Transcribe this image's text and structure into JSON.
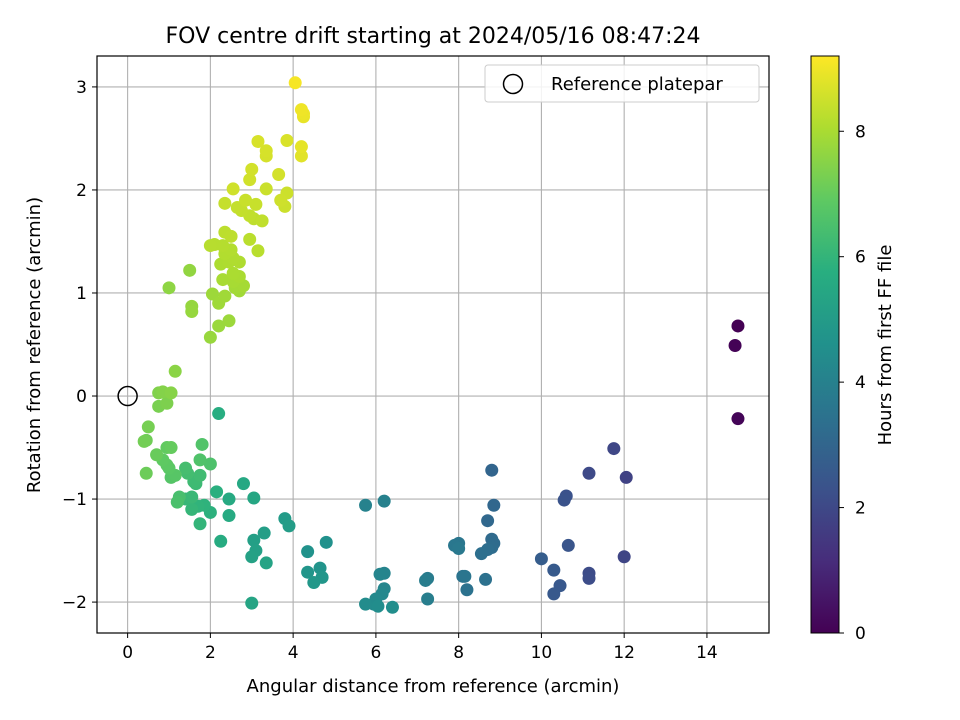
{
  "chart_data": {
    "type": "scatter",
    "title": "FOV centre drift starting at 2024/05/16 08:47:24",
    "xlabel": "Angular distance from reference (arcmin)",
    "ylabel": "Rotation from reference (arcmin)",
    "xlim": [
      -0.74,
      15.5
    ],
    "ylim": [
      -2.3,
      3.3
    ],
    "xticks": [
      0,
      2,
      4,
      6,
      8,
      10,
      12,
      14
    ],
    "yticks": [
      -2,
      -1,
      0,
      1,
      2,
      3
    ],
    "grid": true,
    "legend": {
      "placement": "top-right",
      "entries": [
        "Reference platepar"
      ]
    },
    "reference_point": {
      "x": 0,
      "y": 0
    },
    "colorbar": {
      "label": "Hours from first FF file",
      "colormap": "viridis",
      "range": [
        0,
        9.2
      ],
      "ticks": [
        0,
        2,
        4,
        6,
        8
      ]
    },
    "points": [
      [
        14.75,
        0.68,
        0.0
      ],
      [
        14.68,
        0.49,
        0.05
      ],
      [
        14.75,
        -0.22,
        0.1
      ],
      [
        12.05,
        -0.79,
        1.8
      ],
      [
        11.75,
        -0.51,
        1.95
      ],
      [
        11.15,
        -0.75,
        2.05
      ],
      [
        11.15,
        -1.72,
        2.1
      ],
      [
        11.15,
        -1.77,
        2.15
      ],
      [
        12.0,
        -1.56,
        1.9
      ],
      [
        10.6,
        -0.97,
        2.3
      ],
      [
        10.55,
        -1.01,
        2.35
      ],
      [
        10.65,
        -1.45,
        2.4
      ],
      [
        10.45,
        -1.84,
        2.5
      ],
      [
        10.3,
        -1.92,
        2.55
      ],
      [
        10.3,
        -1.69,
        2.6
      ],
      [
        10.0,
        -1.58,
        2.7
      ],
      [
        8.8,
        -0.72,
        3.0
      ],
      [
        8.85,
        -1.06,
        3.05
      ],
      [
        8.7,
        -1.21,
        3.1
      ],
      [
        8.8,
        -1.39,
        3.15
      ],
      [
        8.85,
        -1.43,
        3.2
      ],
      [
        8.8,
        -1.47,
        3.25
      ],
      [
        8.7,
        -1.49,
        3.3
      ],
      [
        8.55,
        -1.53,
        3.35
      ],
      [
        8.65,
        -1.78,
        3.4
      ],
      [
        8.2,
        -1.88,
        3.45
      ],
      [
        8.1,
        -1.75,
        3.5
      ],
      [
        8.15,
        -1.75,
        3.55
      ],
      [
        8.0,
        -1.43,
        3.6
      ],
      [
        7.9,
        -1.45,
        3.65
      ],
      [
        8.0,
        -1.48,
        3.7
      ],
      [
        7.25,
        -1.77,
        3.8
      ],
      [
        7.2,
        -1.79,
        3.85
      ],
      [
        7.25,
        -1.97,
        3.9
      ],
      [
        6.2,
        -1.02,
        4.0
      ],
      [
        5.75,
        -1.06,
        4.05
      ],
      [
        6.2,
        -1.72,
        4.1
      ],
      [
        6.1,
        -1.73,
        4.15
      ],
      [
        6.2,
        -1.87,
        4.2
      ],
      [
        6.15,
        -1.92,
        4.25
      ],
      [
        6.0,
        -1.97,
        4.3
      ],
      [
        5.95,
        -2.02,
        4.35
      ],
      [
        5.75,
        -2.02,
        4.4
      ],
      [
        6.05,
        -2.04,
        4.45
      ],
      [
        6.4,
        -2.05,
        4.5
      ],
      [
        4.8,
        -1.42,
        4.6
      ],
      [
        4.35,
        -1.51,
        4.65
      ],
      [
        4.65,
        -1.67,
        4.7
      ],
      [
        4.35,
        -1.71,
        4.75
      ],
      [
        4.7,
        -1.76,
        4.8
      ],
      [
        4.5,
        -1.81,
        4.85
      ],
      [
        3.8,
        -1.19,
        5.0
      ],
      [
        3.9,
        -1.26,
        5.05
      ],
      [
        3.3,
        -1.33,
        5.1
      ],
      [
        3.05,
        -1.4,
        5.15
      ],
      [
        3.1,
        -1.5,
        5.2
      ],
      [
        3.0,
        -1.56,
        5.25
      ],
      [
        3.35,
        -1.62,
        5.3
      ],
      [
        3.0,
        -2.01,
        5.35
      ],
      [
        3.05,
        -0.99,
        5.45
      ],
      [
        2.8,
        -0.85,
        5.5
      ],
      [
        2.45,
        -1.0,
        5.55
      ],
      [
        2.45,
        -1.16,
        5.6
      ],
      [
        2.25,
        -1.41,
        5.65
      ],
      [
        2.2,
        -0.17,
        5.7
      ],
      [
        2.15,
        -0.93,
        5.8
      ],
      [
        2.0,
        -1.13,
        5.85
      ],
      [
        1.85,
        -1.06,
        5.9
      ],
      [
        1.7,
        -1.07,
        5.95
      ],
      [
        1.75,
        -1.24,
        6.0
      ],
      [
        1.55,
        -1.1,
        6.05
      ],
      [
        1.4,
        -1.0,
        6.1
      ],
      [
        1.55,
        -0.98,
        6.15
      ],
      [
        1.65,
        -0.85,
        6.2
      ],
      [
        1.6,
        -0.83,
        6.25
      ],
      [
        1.75,
        -0.77,
        6.3
      ],
      [
        1.45,
        -0.75,
        6.35
      ],
      [
        1.4,
        -0.7,
        6.4
      ],
      [
        1.25,
        -0.98,
        6.45
      ],
      [
        1.2,
        -1.03,
        6.5
      ],
      [
        2.0,
        -0.66,
        6.55
      ],
      [
        1.75,
        -0.62,
        6.6
      ],
      [
        1.8,
        -0.47,
        6.65
      ],
      [
        1.05,
        -0.79,
        6.7
      ],
      [
        1.15,
        -0.77,
        6.75
      ],
      [
        1.0,
        -0.7,
        6.8
      ],
      [
        0.95,
        -0.67,
        6.85
      ],
      [
        0.85,
        -0.62,
        6.9
      ],
      [
        0.95,
        -0.5,
        6.95
      ],
      [
        1.05,
        -0.5,
        7.0
      ],
      [
        0.7,
        -0.57,
        7.05
      ],
      [
        0.45,
        -0.75,
        7.1
      ],
      [
        0.45,
        -0.43,
        7.15
      ],
      [
        0.4,
        -0.44,
        7.2
      ],
      [
        0.5,
        -0.3,
        7.25
      ],
      [
        0.75,
        -0.1,
        7.3
      ],
      [
        0.95,
        -0.07,
        7.35
      ],
      [
        0.75,
        0.03,
        7.4
      ],
      [
        0.85,
        0.04,
        7.45
      ],
      [
        1.05,
        0.03,
        7.5
      ],
      [
        1.15,
        0.24,
        7.55
      ],
      [
        1.0,
        1.05,
        7.6
      ],
      [
        1.5,
        1.22,
        7.65
      ],
      [
        1.55,
        0.87,
        7.7
      ],
      [
        1.55,
        0.82,
        7.72
      ],
      [
        2.0,
        0.57,
        7.75
      ],
      [
        2.2,
        0.68,
        7.78
      ],
      [
        2.45,
        0.73,
        7.8
      ],
      [
        2.05,
        0.99,
        7.82
      ],
      [
        2.2,
        0.9,
        7.84
      ],
      [
        2.35,
        0.97,
        7.86
      ],
      [
        2.7,
        1.02,
        7.88
      ],
      [
        2.6,
        1.05,
        7.9
      ],
      [
        2.65,
        1.07,
        7.92
      ],
      [
        2.8,
        1.07,
        7.94
      ],
      [
        2.55,
        1.11,
        7.96
      ],
      [
        2.3,
        1.13,
        7.98
      ],
      [
        2.7,
        1.16,
        8.0
      ],
      [
        2.55,
        1.19,
        8.02
      ],
      [
        2.25,
        1.28,
        8.04
      ],
      [
        2.45,
        1.3,
        8.06
      ],
      [
        2.7,
        1.3,
        8.08
      ],
      [
        2.55,
        1.34,
        8.1
      ],
      [
        2.35,
        1.38,
        8.12
      ],
      [
        2.5,
        1.42,
        8.14
      ],
      [
        2.3,
        1.46,
        8.16
      ],
      [
        2.1,
        1.47,
        8.18
      ],
      [
        2.0,
        1.46,
        8.2
      ],
      [
        3.15,
        1.41,
        8.22
      ],
      [
        2.95,
        1.52,
        8.24
      ],
      [
        2.35,
        1.59,
        8.26
      ],
      [
        2.5,
        1.55,
        8.28
      ],
      [
        3.05,
        1.72,
        8.3
      ],
      [
        3.25,
        1.7,
        8.32
      ],
      [
        2.95,
        1.75,
        8.34
      ],
      [
        2.75,
        1.8,
        8.36
      ],
      [
        2.65,
        1.83,
        8.38
      ],
      [
        2.35,
        1.87,
        8.4
      ],
      [
        3.1,
        1.86,
        8.42
      ],
      [
        2.85,
        1.9,
        8.44
      ],
      [
        3.35,
        2.01,
        8.46
      ],
      [
        3.8,
        1.84,
        8.48
      ],
      [
        3.85,
        1.97,
        8.5
      ],
      [
        3.7,
        1.9,
        8.52
      ],
      [
        2.55,
        2.01,
        8.54
      ],
      [
        2.95,
        2.1,
        8.56
      ],
      [
        3.0,
        2.2,
        8.58
      ],
      [
        3.65,
        2.15,
        8.6
      ],
      [
        3.35,
        2.33,
        8.62
      ],
      [
        3.35,
        2.38,
        8.64
      ],
      [
        3.15,
        2.47,
        8.66
      ],
      [
        3.85,
        2.48,
        8.68
      ],
      [
        4.2,
        2.33,
        8.8
      ],
      [
        4.2,
        2.42,
        8.85
      ],
      [
        4.25,
        2.71,
        8.9
      ],
      [
        4.25,
        2.74,
        8.95
      ],
      [
        4.2,
        2.78,
        9.0
      ],
      [
        4.05,
        3.04,
        9.1
      ]
    ]
  }
}
